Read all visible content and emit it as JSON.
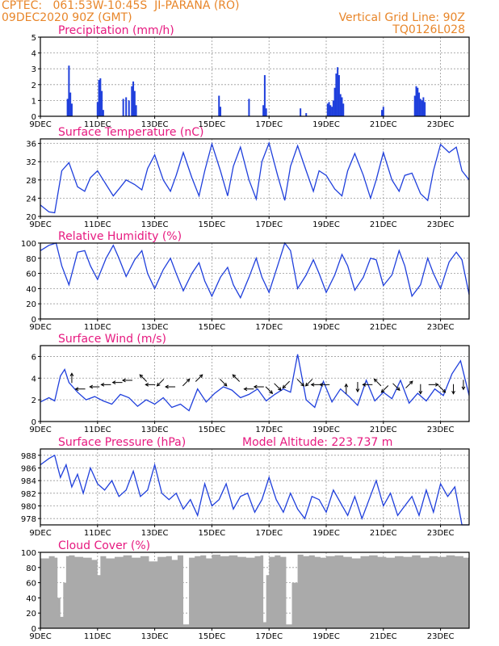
{
  "header": {
    "line1": "CPTEC:   061:53W-10:45S  JI-PARANA (RO)",
    "line2": "09DEC2020 90Z (GMT)",
    "right1": "Vertical Grid Line: 90Z",
    "right2": "TQ0126L028"
  },
  "colors": {
    "header": "#e8862a",
    "title": "#e6197f",
    "series": "#1f3fdc",
    "cloud": "#aaaaaa"
  },
  "x_tick_labels": [
    "9DEC",
    "11DEC",
    "13DEC",
    "15DEC",
    "17DEC",
    "19DEC",
    "21DEC",
    "23DEC"
  ],
  "chart_data": [
    {
      "type": "bar",
      "title": "Precipitation (mm/h)",
      "x_range_days": [
        0,
        15
      ],
      "ylim": [
        0,
        5
      ],
      "yticks": [
        0,
        1,
        2,
        3,
        4,
        5
      ],
      "x": [
        0.95,
        1.0,
        1.05,
        1.1,
        2.0,
        2.05,
        2.1,
        2.15,
        2.2,
        2.9,
        3.0,
        3.1,
        3.2,
        3.25,
        3.3,
        3.35,
        6.25,
        6.3,
        7.3,
        7.8,
        7.85,
        7.9,
        9.1,
        9.3,
        10.05,
        10.1,
        10.15,
        10.2,
        10.25,
        10.3,
        10.35,
        10.4,
        10.45,
        10.5,
        10.55,
        10.6,
        11.95,
        12.0,
        13.1,
        13.15,
        13.2,
        13.25,
        13.3,
        13.35,
        13.4,
        13.45
      ],
      "values": [
        1.1,
        3.2,
        1.5,
        0.8,
        0.9,
        2.3,
        2.4,
        1.6,
        0.4,
        1.1,
        1.2,
        1.0,
        1.9,
        2.2,
        1.6,
        0.7,
        1.3,
        0.6,
        1.1,
        0.7,
        2.6,
        0.5,
        0.5,
        0.2,
        0.8,
        0.9,
        0.7,
        0.6,
        1.0,
        1.8,
        2.7,
        3.1,
        2.6,
        1.4,
        1.2,
        0.8,
        0.4,
        0.6,
        1.3,
        1.9,
        1.8,
        1.5,
        1.1,
        1.0,
        1.2,
        0.9
      ]
    },
    {
      "type": "line",
      "title": "Surface Temperature (nC)",
      "x_range_days": [
        0,
        15
      ],
      "ylim": [
        20,
        37
      ],
      "yticks": [
        20,
        24,
        28,
        32,
        36
      ],
      "x": [
        0,
        0.3,
        0.5,
        0.75,
        1.0,
        1.3,
        1.55,
        1.75,
        2.0,
        2.3,
        2.55,
        2.75,
        3.0,
        3.3,
        3.55,
        3.75,
        4.0,
        4.3,
        4.55,
        4.75,
        5.0,
        5.3,
        5.55,
        5.75,
        6.0,
        6.3,
        6.55,
        6.75,
        7.0,
        7.3,
        7.55,
        7.75,
        8.0,
        8.3,
        8.55,
        8.75,
        9.0,
        9.3,
        9.55,
        9.75,
        10.0,
        10.3,
        10.55,
        10.75,
        11.0,
        11.3,
        11.55,
        11.75,
        12.0,
        12.3,
        12.55,
        12.75,
        13.0,
        13.3,
        13.55,
        13.75,
        14.0,
        14.3,
        14.55,
        14.75,
        15.0
      ],
      "y": [
        22.5,
        21.0,
        20.8,
        30.0,
        31.8,
        26.5,
        25.5,
        28.5,
        30.0,
        27.0,
        24.5,
        26.0,
        28.0,
        27.0,
        25.8,
        30.5,
        33.5,
        28.0,
        25.5,
        29.0,
        34.0,
        28.5,
        24.5,
        30.0,
        35.9,
        30.0,
        24.5,
        31.0,
        35.2,
        28.0,
        23.8,
        32.0,
        36.1,
        29.0,
        23.5,
        31.0,
        35.5,
        30.0,
        25.5,
        30.0,
        29.0,
        26.0,
        24.5,
        30.0,
        33.8,
        29.0,
        24.0,
        28.0,
        34.0,
        28.0,
        25.5,
        29.0,
        29.5,
        25.0,
        23.5,
        30.0,
        35.8,
        34.0,
        35.2,
        30.0,
        28.0
      ]
    },
    {
      "type": "line",
      "title": "Relative Humidity (%)",
      "x_range_days": [
        0,
        15
      ],
      "ylim": [
        0,
        100
      ],
      "yticks": [
        0,
        20,
        40,
        60,
        80,
        100
      ],
      "x": [
        0,
        0.3,
        0.55,
        0.75,
        1.0,
        1.3,
        1.55,
        1.75,
        2.0,
        2.3,
        2.55,
        2.75,
        3.0,
        3.3,
        3.55,
        3.75,
        4.0,
        4.3,
        4.55,
        4.75,
        5.0,
        5.3,
        5.55,
        5.75,
        6.0,
        6.3,
        6.55,
        6.75,
        7.0,
        7.3,
        7.55,
        7.75,
        8.0,
        8.3,
        8.55,
        8.75,
        9.0,
        9.3,
        9.55,
        9.75,
        10.0,
        10.3,
        10.55,
        10.75,
        11.0,
        11.3,
        11.55,
        11.75,
        12.0,
        12.3,
        12.55,
        12.75,
        13.0,
        13.3,
        13.55,
        13.75,
        14.0,
        14.3,
        14.55,
        14.75,
        15.0
      ],
      "y": [
        90,
        97,
        100,
        70,
        45,
        88,
        90,
        70,
        52,
        80,
        97,
        80,
        56,
        78,
        90,
        60,
        40,
        65,
        80,
        60,
        37,
        60,
        74,
        50,
        30,
        55,
        68,
        45,
        28,
        55,
        80,
        55,
        35,
        70,
        100,
        90,
        40,
        58,
        78,
        60,
        35,
        58,
        85,
        70,
        38,
        55,
        80,
        78,
        44,
        58,
        90,
        70,
        30,
        45,
        80,
        60,
        40,
        75,
        88,
        78,
        32
      ]
    },
    {
      "type": "line",
      "title": "Surface Wind (m/s)",
      "x_range_days": [
        0,
        15
      ],
      "ylim": [
        0,
        7
      ],
      "yticks": [
        0,
        2,
        4,
        6
      ],
      "x": [
        0,
        0.3,
        0.5,
        0.7,
        0.85,
        1.0,
        1.3,
        1.6,
        1.9,
        2.2,
        2.5,
        2.8,
        3.1,
        3.4,
        3.7,
        4.0,
        4.3,
        4.6,
        4.9,
        5.2,
        5.5,
        5.8,
        6.1,
        6.4,
        6.7,
        7.0,
        7.3,
        7.6,
        7.9,
        8.2,
        8.5,
        8.75,
        9.0,
        9.3,
        9.6,
        9.9,
        10.2,
        10.5,
        10.8,
        11.1,
        11.4,
        11.7,
        12.0,
        12.3,
        12.6,
        12.9,
        13.2,
        13.5,
        13.8,
        14.1,
        14.4,
        14.7,
        15.0
      ],
      "y": [
        1.8,
        2.2,
        1.9,
        4.2,
        4.8,
        3.6,
        2.7,
        2.0,
        2.3,
        1.9,
        1.6,
        2.5,
        2.2,
        1.4,
        2.0,
        1.6,
        2.2,
        1.3,
        1.6,
        1.0,
        3.0,
        1.8,
        2.6,
        3.2,
        2.9,
        2.2,
        2.5,
        3.0,
        1.9,
        2.5,
        3.0,
        2.7,
        6.2,
        2.0,
        1.3,
        3.7,
        1.8,
        3.0,
        2.3,
        1.5,
        3.8,
        1.9,
        2.7,
        2.1,
        3.8,
        1.7,
        2.6,
        1.9,
        3.0,
        2.4,
        4.4,
        5.6,
        2.4
      ],
      "arrows": [
        {
          "x": 1.1,
          "speed": 4.0,
          "dir": "N"
        },
        {
          "x": 1.4,
          "speed": 3.0,
          "dir": "W"
        },
        {
          "x": 1.9,
          "speed": 3.2,
          "dir": "W"
        },
        {
          "x": 2.3,
          "speed": 3.4,
          "dir": "W"
        },
        {
          "x": 2.7,
          "speed": 3.6,
          "dir": "W"
        },
        {
          "x": 3.05,
          "speed": 3.8,
          "dir": "W"
        },
        {
          "x": 3.6,
          "speed": 4.0,
          "dir": "NW"
        },
        {
          "x": 3.85,
          "speed": 3.4,
          "dir": "W"
        },
        {
          "x": 4.2,
          "speed": 3.6,
          "dir": "SW"
        },
        {
          "x": 4.55,
          "speed": 3.2,
          "dir": "W"
        },
        {
          "x": 5.1,
          "speed": 3.6,
          "dir": "NE"
        },
        {
          "x": 5.55,
          "speed": 4.0,
          "dir": "NE"
        },
        {
          "x": 6.4,
          "speed": 3.6,
          "dir": "SE"
        },
        {
          "x": 6.85,
          "speed": 4.0,
          "dir": "NW"
        },
        {
          "x": 7.3,
          "speed": 3.0,
          "dir": "W"
        },
        {
          "x": 7.65,
          "speed": 3.2,
          "dir": "W"
        },
        {
          "x": 8.0,
          "speed": 2.9,
          "dir": "SE"
        },
        {
          "x": 8.3,
          "speed": 3.2,
          "dir": "SE"
        },
        {
          "x": 8.6,
          "speed": 3.4,
          "dir": "SW"
        },
        {
          "x": 9.1,
          "speed": 3.6,
          "dir": "SE"
        },
        {
          "x": 9.4,
          "speed": 3.6,
          "dir": "SW"
        },
        {
          "x": 9.65,
          "speed": 3.4,
          "dir": "W"
        },
        {
          "x": 9.95,
          "speed": 3.4,
          "dir": "W"
        },
        {
          "x": 10.7,
          "speed": 3.0,
          "dir": "N"
        },
        {
          "x": 11.1,
          "speed": 3.2,
          "dir": "S"
        },
        {
          "x": 11.45,
          "speed": 3.4,
          "dir": "W"
        },
        {
          "x": 11.8,
          "speed": 3.6,
          "dir": "NW"
        },
        {
          "x": 12.05,
          "speed": 3.0,
          "dir": "SW"
        },
        {
          "x": 12.45,
          "speed": 3.2,
          "dir": "SE"
        },
        {
          "x": 12.9,
          "speed": 3.4,
          "dir": "NE"
        },
        {
          "x": 13.3,
          "speed": 3.0,
          "dir": "S"
        },
        {
          "x": 13.75,
          "speed": 3.4,
          "dir": "E"
        },
        {
          "x": 14.05,
          "speed": 3.0,
          "dir": "SE"
        },
        {
          "x": 14.45,
          "speed": 3.0,
          "dir": "S"
        },
        {
          "x": 14.8,
          "speed": 3.4,
          "dir": "S"
        }
      ]
    },
    {
      "type": "line",
      "title": "Surface Pressure (hPa)",
      "annotation": "Model Altitude: 223.737 m",
      "x_range_days": [
        0,
        15
      ],
      "ylim": [
        977,
        989
      ],
      "yticks": [
        978,
        980,
        982,
        984,
        986,
        988
      ],
      "x": [
        0,
        0.3,
        0.5,
        0.7,
        0.9,
        1.1,
        1.3,
        1.5,
        1.75,
        2.0,
        2.25,
        2.5,
        2.75,
        3.0,
        3.25,
        3.5,
        3.75,
        4.0,
        4.25,
        4.5,
        4.75,
        5.0,
        5.25,
        5.5,
        5.75,
        6.0,
        6.25,
        6.5,
        6.75,
        7.0,
        7.25,
        7.5,
        7.75,
        8.0,
        8.25,
        8.5,
        8.75,
        9.0,
        9.25,
        9.5,
        9.75,
        10.0,
        10.25,
        10.5,
        10.75,
        11.0,
        11.25,
        11.5,
        11.75,
        12.0,
        12.25,
        12.5,
        12.75,
        13.0,
        13.25,
        13.5,
        13.75,
        14.0,
        14.25,
        14.5,
        14.75,
        15.0
      ],
      "y": [
        986.5,
        987.5,
        988.0,
        984.5,
        986.5,
        983.0,
        985.0,
        982.0,
        986.0,
        983.5,
        982.5,
        984.0,
        981.5,
        982.5,
        985.5,
        981.5,
        982.5,
        986.5,
        982.0,
        981.0,
        982.0,
        979.5,
        981.0,
        978.5,
        983.5,
        980.0,
        981.0,
        983.5,
        979.5,
        981.5,
        982.0,
        979.0,
        981.0,
        984.5,
        981.0,
        979.0,
        982.0,
        979.5,
        978.0,
        981.5,
        981.0,
        979.0,
        982.5,
        980.5,
        978.5,
        981.5,
        978.0,
        981.0,
        984.0,
        980.0,
        982.0,
        978.5,
        980.0,
        981.5,
        978.5,
        982.5,
        979.0,
        983.5,
        981.5,
        983.0,
        977.0,
        977.0
      ]
    },
    {
      "type": "area",
      "title": "Cloud Cover (%)",
      "x_range_days": [
        0,
        15
      ],
      "ylim": [
        0,
        100
      ],
      "yticks": [
        0,
        20,
        40,
        60,
        80,
        100
      ],
      "x": [
        0,
        0.3,
        0.5,
        0.6,
        0.7,
        0.8,
        0.9,
        1.0,
        1.2,
        1.5,
        1.8,
        2.0,
        2.1,
        2.3,
        2.6,
        2.9,
        3.2,
        3.5,
        3.8,
        4.1,
        4.4,
        4.6,
        4.8,
        5.0,
        5.2,
        5.4,
        5.6,
        5.8,
        6.0,
        6.3,
        6.6,
        6.9,
        7.2,
        7.5,
        7.7,
        7.8,
        7.9,
        8.0,
        8.2,
        8.4,
        8.6,
        8.8,
        9.0,
        9.2,
        9.4,
        9.6,
        9.8,
        10.0,
        10.3,
        10.6,
        10.9,
        11.2,
        11.5,
        11.8,
        12.1,
        12.4,
        12.7,
        13.0,
        13.3,
        13.6,
        13.9,
        14.2,
        14.5,
        14.8,
        15.0
      ],
      "y": [
        92,
        95,
        93,
        40,
        15,
        60,
        95,
        96,
        94,
        93,
        90,
        70,
        95,
        92,
        94,
        96,
        93,
        95,
        88,
        94,
        95,
        90,
        96,
        5,
        93,
        95,
        96,
        92,
        97,
        95,
        96,
        94,
        93,
        95,
        96,
        8,
        70,
        94,
        96,
        94,
        5,
        60,
        97,
        95,
        96,
        94,
        93,
        95,
        96,
        94,
        92,
        95,
        96,
        94,
        93,
        95,
        94,
        96,
        93,
        95,
        94,
        96,
        95,
        93,
        95
      ]
    }
  ]
}
